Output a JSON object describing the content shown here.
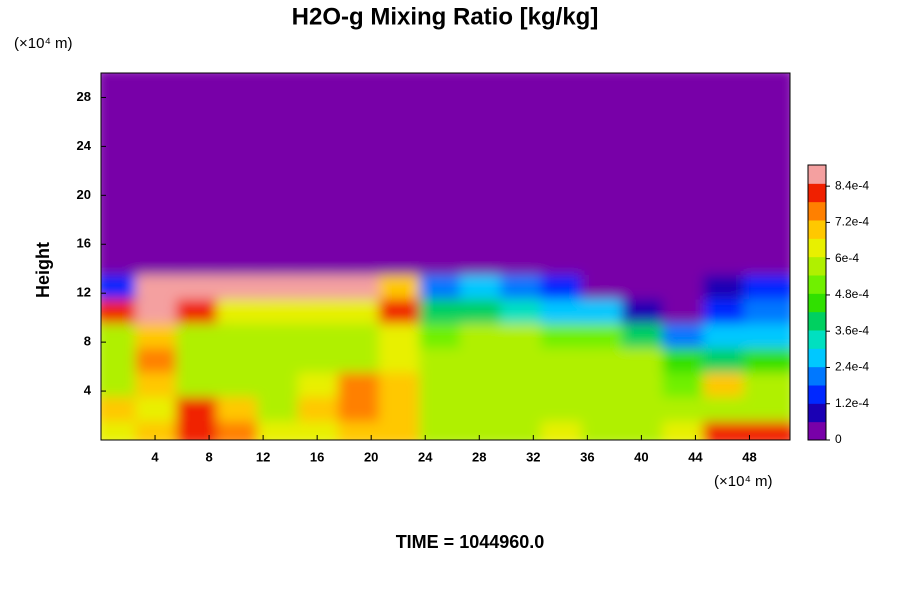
{
  "chart_data": {
    "type": "heatmap",
    "title": "H2O-g Mixing Ratio [kg/kg]",
    "y_unit": "(×10⁴ m)",
    "x_unit": "(×10⁴ m)",
    "y_label": "Height",
    "footer": "TIME = 1044960.0",
    "xlim": [
      0,
      51
    ],
    "ylim": [
      0,
      30
    ],
    "xticks": [
      4,
      8,
      12,
      16,
      20,
      24,
      28,
      32,
      36,
      40,
      44,
      48
    ],
    "yticks": [
      4,
      8,
      12,
      16,
      20,
      24,
      28
    ],
    "x": [
      1.5,
      4.5,
      7.5,
      10.5,
      13.5,
      16.5,
      19.5,
      22.5,
      25.5,
      28.5,
      31.5,
      34.5,
      37.5,
      40.5,
      43.5,
      46.5,
      49.5
    ],
    "y": [
      1,
      3,
      5,
      7,
      9,
      11,
      13,
      15,
      17,
      19,
      21,
      23,
      25,
      27,
      29
    ],
    "z": [
      [
        0.00065,
        0.0007,
        0.0008,
        0.00075,
        0.00065,
        0.00065,
        0.0007,
        0.0007,
        0.0006,
        0.0006,
        0.0006,
        0.00065,
        0.0006,
        0.0006,
        0.00065,
        0.0008,
        0.0008
      ],
      [
        0.0007,
        0.00065,
        0.0008,
        0.0007,
        0.0006,
        0.0007,
        0.00075,
        0.0007,
        0.0006,
        0.00055,
        0.00055,
        0.0006,
        0.00055,
        0.0006,
        0.0006,
        0.0006,
        0.0006
      ],
      [
        0.0006,
        0.0007,
        0.0006,
        0.0006,
        0.0006,
        0.00065,
        0.00075,
        0.0007,
        0.00055,
        0.0006,
        0.00055,
        0.00055,
        0.0006,
        0.00055,
        0.0005,
        0.0007,
        0.00055
      ],
      [
        0.00055,
        0.00075,
        0.0006,
        0.0006,
        0.0006,
        0.0006,
        0.0006,
        0.00065,
        0.00055,
        0.00055,
        0.0006,
        0.00055,
        0.00055,
        0.00055,
        0.00045,
        0.0004,
        0.00045
      ],
      [
        0.0006,
        0.0007,
        0.0006,
        0.0006,
        0.0006,
        0.0006,
        0.0006,
        0.00065,
        0.0005,
        0.00055,
        0.00055,
        0.0005,
        0.0005,
        0.0004,
        0.0002,
        0.0003,
        0.0003
      ],
      [
        0.0008,
        0.0009,
        0.0008,
        0.00065,
        0.00065,
        0.00065,
        0.00065,
        0.0008,
        0.0004,
        0.0004,
        0.00035,
        0.0003,
        0.00025,
        0.0001,
        5e-05,
        0.00015,
        0.0002
      ],
      [
        0.00015,
        0.0009,
        0.0009,
        0.0009,
        0.0009,
        0.0009,
        0.0009,
        0.0007,
        0.0002,
        0.00025,
        0.0002,
        0.00015,
        5e-05,
        0,
        0,
        8e-05,
        0.00015
      ],
      [
        0,
        0,
        0,
        0,
        0,
        0,
        0,
        0,
        0,
        0,
        0,
        0,
        0,
        0,
        0,
        0,
        0
      ],
      [
        0,
        0,
        0,
        0,
        0,
        0,
        0,
        0,
        0,
        0,
        0,
        0,
        0,
        0,
        0,
        0,
        0
      ],
      [
        0,
        0,
        0,
        0,
        0,
        0,
        0,
        0,
        0,
        0,
        0,
        0,
        0,
        0,
        0,
        0,
        0
      ],
      [
        0,
        0,
        0,
        0,
        0,
        0,
        0,
        0,
        0,
        0,
        0,
        0,
        0,
        0,
        0,
        0,
        0
      ],
      [
        0,
        0,
        0,
        0,
        0,
        0,
        0,
        0,
        0,
        0,
        0,
        0,
        0,
        0,
        0,
        0,
        0
      ],
      [
        0,
        0,
        0,
        0,
        0,
        0,
        0,
        0,
        0,
        0,
        0,
        0,
        0,
        0,
        0,
        0,
        0
      ],
      [
        0,
        0,
        0,
        0,
        0,
        0,
        0,
        0,
        0,
        0,
        0,
        0,
        0,
        0,
        0,
        0,
        0
      ],
      [
        0,
        0,
        0,
        0,
        0,
        0,
        0,
        0,
        0,
        0,
        0,
        0,
        0,
        0,
        0,
        0,
        0
      ]
    ],
    "clim": [
      0,
      0.00091
    ],
    "cticks": [
      0,
      {
        "value": 0.00012,
        "label": "1.2e-4"
      },
      {
        "value": 0.00024,
        "label": "2.4e-4"
      },
      {
        "value": 0.00036,
        "label": "3.6e-4"
      },
      {
        "value": 0.00048,
        "label": "4.8e-4"
      },
      {
        "value": 0.0006,
        "label": "6e-4"
      },
      {
        "value": 0.00072,
        "label": "7.2e-4"
      },
      {
        "value": 0.00084,
        "label": "8.4e-4"
      }
    ],
    "colormap": [
      "#7800a8",
      "#1a00b4",
      "#0028ff",
      "#0078ff",
      "#00c8ff",
      "#00e0c0",
      "#00d060",
      "#30e000",
      "#70f000",
      "#b0f000",
      "#e8f000",
      "#ffc800",
      "#ff8000",
      "#f02000",
      "#f4a0a0"
    ]
  }
}
